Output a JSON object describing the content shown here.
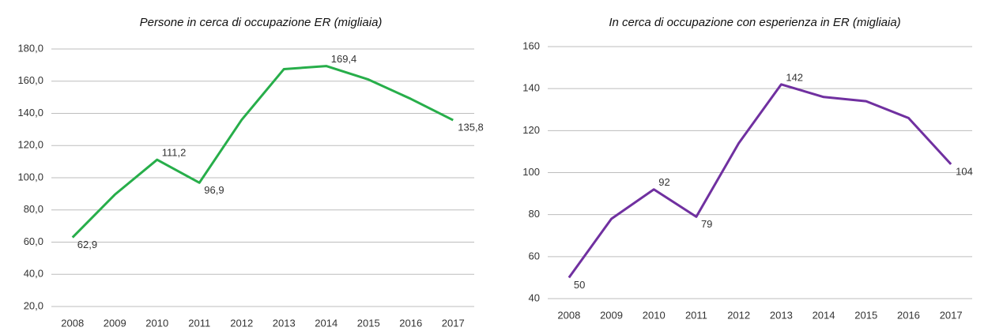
{
  "chart_data": [
    {
      "type": "line",
      "title": "Persone in cerca di occupazione ER (migliaia)",
      "categories": [
        "2008",
        "2009",
        "2010",
        "2011",
        "2012",
        "2013",
        "2014",
        "2015",
        "2016",
        "2017"
      ],
      "series": [
        {
          "name": "Persone in cerca di occupazione",
          "color": "#27ae4a",
          "values": [
            62.9,
            89.5,
            111.2,
            96.9,
            136,
            167.5,
            169.4,
            161,
            149,
            135.8
          ],
          "value_labels": [
            "62,9",
            null,
            "111,2",
            "96,9",
            null,
            null,
            "169,4",
            null,
            null,
            "135,8"
          ]
        }
      ],
      "ylim": [
        20,
        180
      ],
      "yticks": [
        {
          "value": 20,
          "label": "20,0"
        },
        {
          "value": 40,
          "label": "40,0"
        },
        {
          "value": 60,
          "label": "60,0"
        },
        {
          "value": 80,
          "label": "80,0"
        },
        {
          "value": 100,
          "label": "100,0"
        },
        {
          "value": 120,
          "label": "120,0"
        },
        {
          "value": 140,
          "label": "140,0"
        },
        {
          "value": 160,
          "label": "160,0"
        },
        {
          "value": 180,
          "label": "180,0"
        }
      ],
      "grid": true
    },
    {
      "type": "line",
      "title": "In cerca di occupazione con esperienza in ER (migliaia)",
      "categories": [
        "2008",
        "2009",
        "2010",
        "2011",
        "2012",
        "2013",
        "2014",
        "2015",
        "2016",
        "2017"
      ],
      "series": [
        {
          "name": "In cerca di occupazione con esperienza",
          "color": "#7030a0",
          "values": [
            50,
            78,
            92,
            79,
            114,
            142,
            136,
            134,
            126,
            104
          ],
          "value_labels": [
            "50",
            null,
            "92",
            "79",
            null,
            "142",
            null,
            null,
            null,
            "104"
          ]
        }
      ],
      "ylim": [
        40,
        160
      ],
      "yticks": [
        40,
        60,
        80,
        100,
        120,
        140,
        160
      ],
      "grid": true
    }
  ]
}
